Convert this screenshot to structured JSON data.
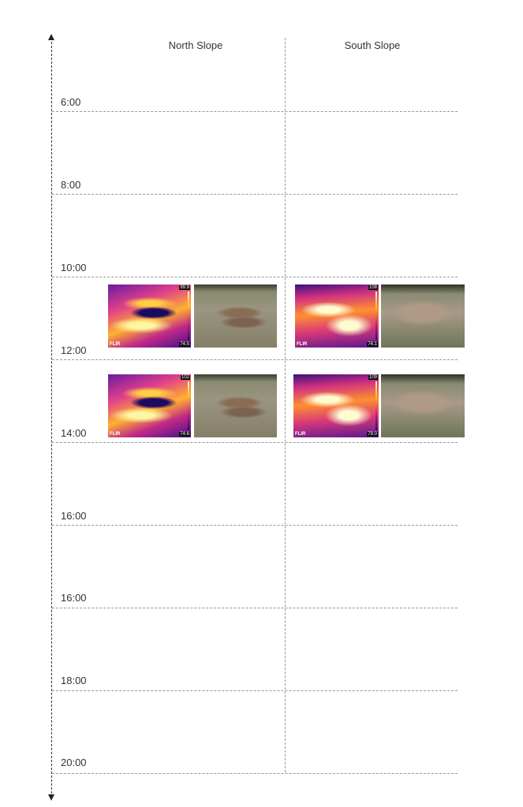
{
  "columns": [
    "North Slope",
    "South Slope"
  ],
  "time_labels": [
    "6:00",
    "8:00",
    "10:00",
    "12:00",
    "14:00",
    "16:00",
    "16:00",
    "18:00",
    "20:00"
  ],
  "images": {
    "north_12": {
      "max": "99.9",
      "min": "74.5",
      "brand": "FLIR"
    },
    "south_12": {
      "max": "108",
      "min": "74.1",
      "brand": "FLIR"
    },
    "north_14": {
      "max": "102",
      "min": "74.6",
      "brand": "FLIR"
    },
    "south_14": {
      "max": "109",
      "min": "79.0",
      "brand": "FLIR"
    }
  }
}
